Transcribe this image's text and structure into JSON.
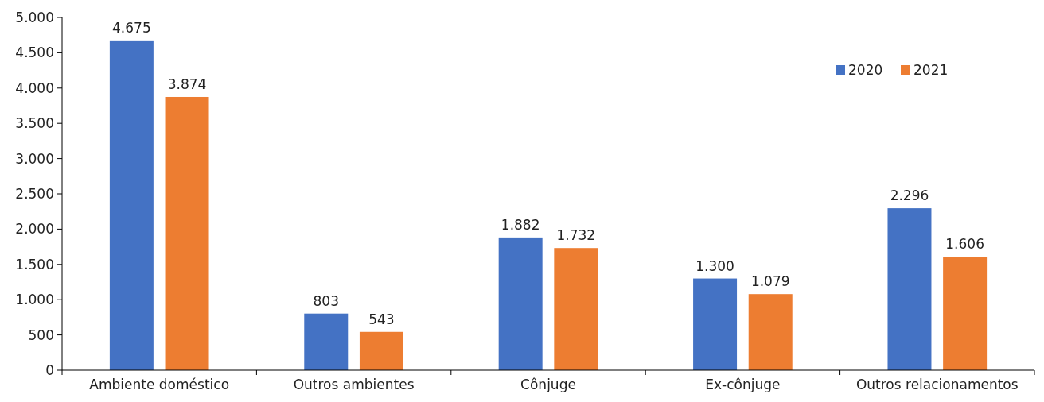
{
  "chart_data": {
    "type": "bar",
    "categories": [
      "Ambiente doméstico",
      "Outros ambientes",
      "Cônjuge",
      "Ex-cônjuge",
      "Outros relacionamentos"
    ],
    "series": [
      {
        "name": "2020",
        "color": "#4472c4",
        "values": [
          4675,
          803,
          1882,
          1300,
          2296
        ],
        "value_labels": [
          "4.675",
          "803",
          "1.882",
          "1.300",
          "2.296"
        ]
      },
      {
        "name": "2021",
        "color": "#ed7d31",
        "values": [
          3874,
          543,
          1732,
          1079,
          1606
        ],
        "value_labels": [
          "3.874",
          "543",
          "1.732",
          "1.079",
          "1.606"
        ]
      }
    ],
    "ylim": [
      0,
      5000
    ],
    "yticks": [
      {
        "value": 0,
        "label": "0"
      },
      {
        "value": 500,
        "label": "500"
      },
      {
        "value": 1000,
        "label": "1.000"
      },
      {
        "value": 1500,
        "label": "1.500"
      },
      {
        "value": 2000,
        "label": "2.000"
      },
      {
        "value": 2500,
        "label": "2.500"
      },
      {
        "value": 3000,
        "label": "3.000"
      },
      {
        "value": 3500,
        "label": "3.500"
      },
      {
        "value": 4000,
        "label": "4.000"
      },
      {
        "value": 4500,
        "label": "4.500"
      },
      {
        "value": 5000,
        "label": "5.000"
      }
    ],
    "grid": false,
    "legend": "top right"
  }
}
